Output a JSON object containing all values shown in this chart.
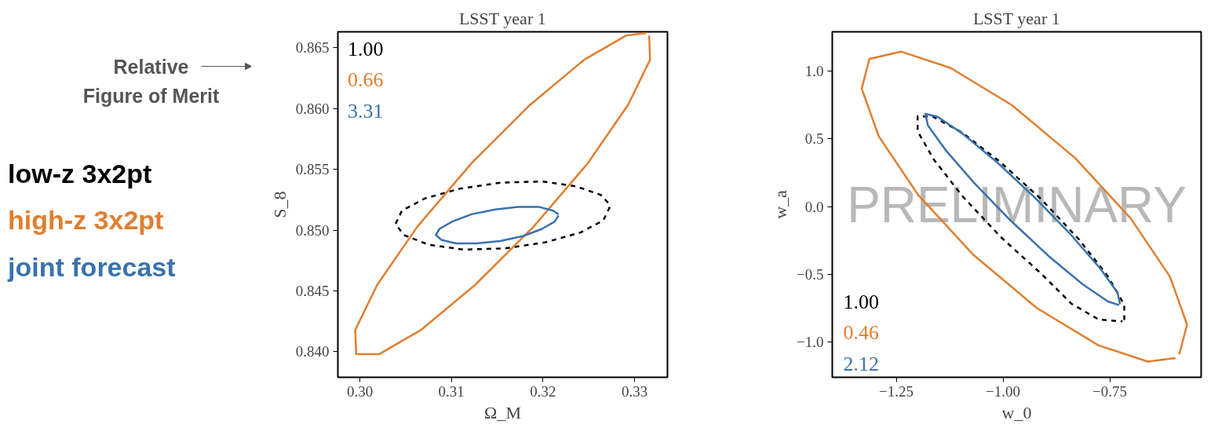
{
  "chart_data": [
    {
      "type": "line",
      "title": "LSST year 1",
      "xlabel": "Ω_M",
      "ylabel": "S_8",
      "xlim": [
        0.2976,
        0.3336
      ],
      "ylim": [
        0.8379,
        0.8663
      ],
      "xticks": [
        {
          "value": 0.3,
          "label": "0.30"
        },
        {
          "value": 0.31,
          "label": "0.31"
        },
        {
          "value": 0.32,
          "label": "0.32"
        },
        {
          "value": 0.33,
          "label": "0.33"
        }
      ],
      "yticks": [
        {
          "value": 0.84,
          "label": "0.840"
        },
        {
          "value": 0.845,
          "label": "0.845"
        },
        {
          "value": 0.85,
          "label": "0.850"
        },
        {
          "value": 0.855,
          "label": "0.855"
        },
        {
          "value": 0.86,
          "label": "0.860"
        },
        {
          "value": 0.865,
          "label": "0.865"
        }
      ],
      "grid": false,
      "legend": "left",
      "marker": "none",
      "annotations": [
        "1.00",
        "0.66",
        "3.31",
        "Relative Figure of Merit"
      ],
      "series": [
        {
          "name": "low-z 3x2pt",
          "color": "#000000",
          "line_style": "dashed",
          "x": [
            0.3273,
            0.3266,
            0.3241,
            0.3203,
            0.3159,
            0.3113,
            0.3075,
            0.3048,
            0.3039,
            0.3046,
            0.3071,
            0.3109,
            0.3154,
            0.3199,
            0.3236,
            0.3263,
            0.3273
          ],
          "values": [
            0.8519,
            0.8508,
            0.8498,
            0.849,
            0.8485,
            0.8484,
            0.8488,
            0.8496,
            0.8505,
            0.8516,
            0.8526,
            0.8534,
            0.8539,
            0.854,
            0.8536,
            0.8529,
            0.8521
          ]
        },
        {
          "name": "high-z 3x2pt",
          "color": "#e07f2f",
          "line_style": "solid",
          "x": [
            0.3316,
            0.3317,
            0.3293,
            0.3249,
            0.319,
            0.3126,
            0.3067,
            0.3021,
            0.2996,
            0.2995,
            0.3019,
            0.3063,
            0.3122,
            0.3186,
            0.3245,
            0.3291,
            0.3313
          ],
          "values": [
            0.866,
            0.864,
            0.8603,
            0.8555,
            0.8503,
            0.8455,
            0.8418,
            0.8398,
            0.8398,
            0.8418,
            0.8455,
            0.8503,
            0.8555,
            0.8603,
            0.864,
            0.866,
            0.8662
          ]
        },
        {
          "name": "joint forecast",
          "color": "#3a72ad",
          "line_style": "solid",
          "x": [
            0.3217,
            0.3213,
            0.3199,
            0.3178,
            0.3153,
            0.3127,
            0.3105,
            0.3089,
            0.3083,
            0.3087,
            0.3101,
            0.3122,
            0.3148,
            0.3173,
            0.3196,
            0.3211,
            0.3217
          ],
          "values": [
            0.8512,
            0.8507,
            0.8501,
            0.8495,
            0.8491,
            0.8489,
            0.8489,
            0.8492,
            0.8496,
            0.8501,
            0.8507,
            0.8513,
            0.8517,
            0.8519,
            0.8519,
            0.8516,
            0.8513
          ]
        }
      ]
    },
    {
      "type": "line",
      "title": "LSST year 1",
      "xlabel": "w_0",
      "ylabel": "w_a",
      "xlim": [
        -1.4,
        -0.536
      ],
      "ylim": [
        -1.261,
        1.291
      ],
      "xticks": [
        {
          "value": -1.25,
          "label": "−1.25"
        },
        {
          "value": -1.0,
          "label": "−1.00"
        },
        {
          "value": -0.75,
          "label": "−0.75"
        }
      ],
      "yticks": [
        {
          "value": -1.0,
          "label": "−1.0"
        },
        {
          "value": -0.5,
          "label": "−0.5"
        },
        {
          "value": 0.0,
          "label": "0.0"
        },
        {
          "value": 0.5,
          "label": "0.5"
        },
        {
          "value": 1.0,
          "label": "1.0"
        }
      ],
      "grid": false,
      "marker": "none",
      "annotations": [
        "1.00",
        "0.46",
        "2.12",
        "PRELIMINARY"
      ],
      "series": [
        {
          "color": "#000000",
          "line_style": "dashed",
          "x": [
            -0.716,
            -0.716,
            -0.754,
            -0.822,
            -0.911,
            -1.008,
            -1.096,
            -1.164,
            -1.2,
            -1.2,
            -1.162,
            -1.094,
            -1.005,
            -0.908,
            -0.84,
            -0.776,
            -0.72
          ],
          "values": [
            -0.837,
            -0.726,
            -0.517,
            -0.243,
            0.056,
            0.333,
            0.547,
            0.664,
            0.667,
            0.556,
            0.347,
            0.073,
            -0.226,
            -0.503,
            -0.717,
            -0.834,
            -0.848
          ]
        },
        {
          "color": "#e07f2f",
          "line_style": "solid",
          "x": [
            -0.587,
            -0.569,
            -0.609,
            -0.701,
            -0.831,
            -0.979,
            -1.123,
            -1.239,
            -1.313,
            -1.331,
            -1.291,
            -1.199,
            -1.069,
            -0.921,
            -0.777,
            -0.661,
            -0.596
          ],
          "values": [
            -1.091,
            -0.871,
            -0.518,
            -0.087,
            0.358,
            0.749,
            1.024,
            1.145,
            1.091,
            0.871,
            0.518,
            0.087,
            -0.358,
            -0.749,
            -1.024,
            -1.145,
            -1.119
          ]
        },
        {
          "color": "#3a72ad",
          "line_style": "solid",
          "x": [
            -0.726,
            -0.732,
            -0.773,
            -0.841,
            -0.926,
            -1.015,
            -1.095,
            -1.154,
            -1.182,
            -1.176,
            -1.135,
            -1.067,
            -0.982,
            -0.893,
            -0.813,
            -0.754,
            -0.728
          ],
          "values": [
            -0.721,
            -0.635,
            -0.455,
            -0.208,
            0.068,
            0.33,
            0.539,
            0.665,
            0.685,
            0.599,
            0.419,
            0.172,
            -0.104,
            -0.366,
            -0.575,
            -0.701,
            -0.728
          ]
        }
      ]
    }
  ]
}
